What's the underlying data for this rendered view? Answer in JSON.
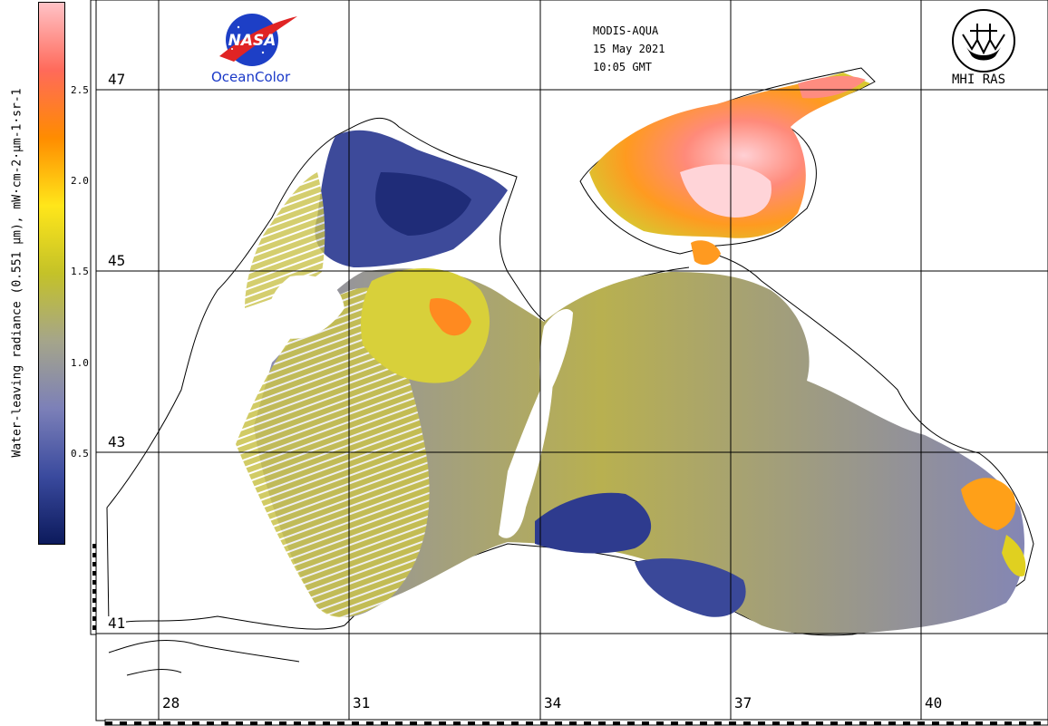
{
  "colorbar": {
    "title": "Water-leaving radiance (0.551 µm), mW·cm-2·µm-1·sr-1",
    "ticks": [
      "2.5",
      "2.0",
      "1.5",
      "1.0",
      "0.5"
    ],
    "tick_values": [
      2.5,
      2.0,
      1.5,
      1.0,
      0.5
    ],
    "range": [
      0.0,
      2.95
    ],
    "colors": [
      "#0c1a5c",
      "#3a4a9e",
      "#7c80b8",
      "#a5a58a",
      "#c4c228",
      "#ffe61a",
      "#ff8c00",
      "#ff6a5a",
      "#ffc2c6"
    ]
  },
  "grid": {
    "lat_labels": [
      "47",
      "45",
      "43",
      "41"
    ],
    "lon_labels": [
      "28",
      "31",
      "34",
      "37",
      "40"
    ],
    "latitudes": [
      47,
      45,
      43,
      41
    ],
    "longitudes": [
      28,
      31,
      34,
      37,
      40
    ]
  },
  "header": {
    "sensor": "MODIS-AQUA",
    "date": "15 May 2021",
    "time": "10:05 GMT"
  },
  "logos": {
    "nasa_text": "NASA",
    "oceancolor": "OceanColor",
    "mhi": "MHI RAS"
  }
}
